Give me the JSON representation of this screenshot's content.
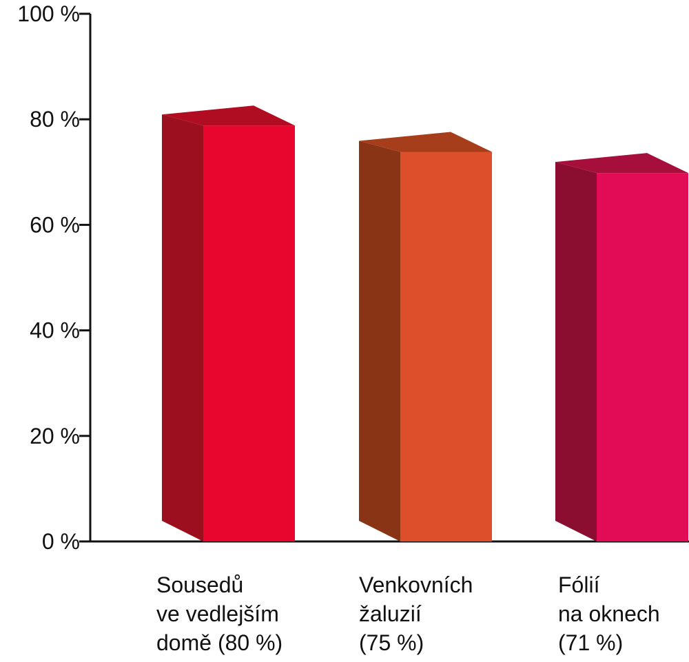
{
  "chart_data": {
    "type": "bar",
    "style": "3d",
    "ylim": [
      0,
      100
    ],
    "yticks": [
      {
        "value": 0,
        "label": "0 %"
      },
      {
        "value": 20,
        "label": "20 %"
      },
      {
        "value": 40,
        "label": "40 %"
      },
      {
        "value": 60,
        "label": "60 %"
      },
      {
        "value": 80,
        "label": "80 %"
      },
      {
        "value": 100,
        "label": "100 %"
      }
    ],
    "grid": false,
    "categories": [
      {
        "lines": [
          "Sousedů",
          "ve vedlejším",
          "domě (80 %)"
        ],
        "value": 80,
        "color": "#e8062e",
        "side": "#9b0f1f",
        "top": "#b00d22"
      },
      {
        "lines": [
          "Venkovních",
          "žaluzií",
          "(75 %)"
        ],
        "value": 75,
        "color": "#dd4e2a",
        "side": "#8a3416",
        "top": "#a63d1b"
      },
      {
        "lines": [
          "Fólií",
          "na oknech",
          "(71 %)"
        ],
        "value": 71,
        "color": "#e20b55",
        "side": "#8b0d30",
        "top": "#a60e3b"
      }
    ]
  }
}
